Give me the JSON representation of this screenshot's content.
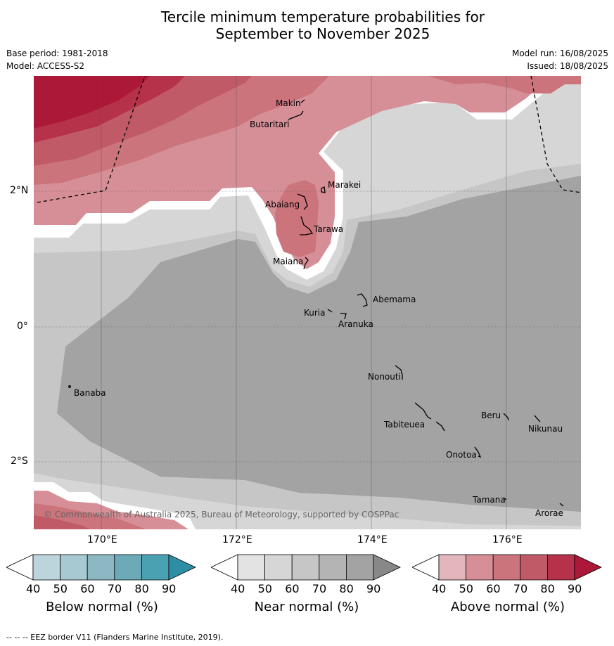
{
  "title_line1": "Tercile minimum temperature probabilities for",
  "title_line2": "September to November 2025",
  "base_period": "Base period: 1981-2018",
  "model": "Model: ACCESS-S2",
  "model_run": "Model run: 16/08/2025",
  "issued": "Issued: 18/08/2025",
  "lat_ticks": [
    "2°N",
    "0°",
    "2°S"
  ],
  "lon_ticks": [
    "170°E",
    "172°E",
    "174°E",
    "176°E"
  ],
  "places": [
    "Makin",
    "Butaritari",
    "Marakei",
    "Abaiang",
    "Tarawa",
    "Maiana",
    "Abemama",
    "Kuria",
    "Aranuka",
    "Nonouti",
    "Banaba",
    "Beru",
    "Nikunau",
    "Tabiteuea",
    "Onotoa",
    "Tamana",
    "Arorae"
  ],
  "copyright": "© Commonwealth of Australia 2025, Bureau of Meteorology, supported by COSPPac",
  "colorbars": [
    {
      "label": "Below normal (%)",
      "ticks": [
        "40",
        "50",
        "60",
        "70",
        "80",
        "90"
      ],
      "colors": [
        "#ffffff",
        "#bcd4dc",
        "#a7c9d1",
        "#8cb8c4",
        "#6caab7",
        "#4aa1b2",
        "#2e8fa4"
      ]
    },
    {
      "label": "Near normal (%)",
      "ticks": [
        "40",
        "50",
        "60",
        "70",
        "80",
        "90"
      ],
      "colors": [
        "#ffffff",
        "#e3e3e3",
        "#d6d6d6",
        "#c6c6c6",
        "#b4b4b4",
        "#a3a3a3",
        "#888888"
      ]
    },
    {
      "label": "Above normal (%)",
      "ticks": [
        "40",
        "50",
        "60",
        "70",
        "80",
        "90"
      ],
      "colors": [
        "#ffffff",
        "#e2b6bc",
        "#d68f97",
        "#cb747c",
        "#c05a67",
        "#b5324a",
        "#ac1838"
      ]
    }
  ],
  "footer": "--  --  -- EEZ border V11 (Flanders Marine Institute, 2019)."
}
